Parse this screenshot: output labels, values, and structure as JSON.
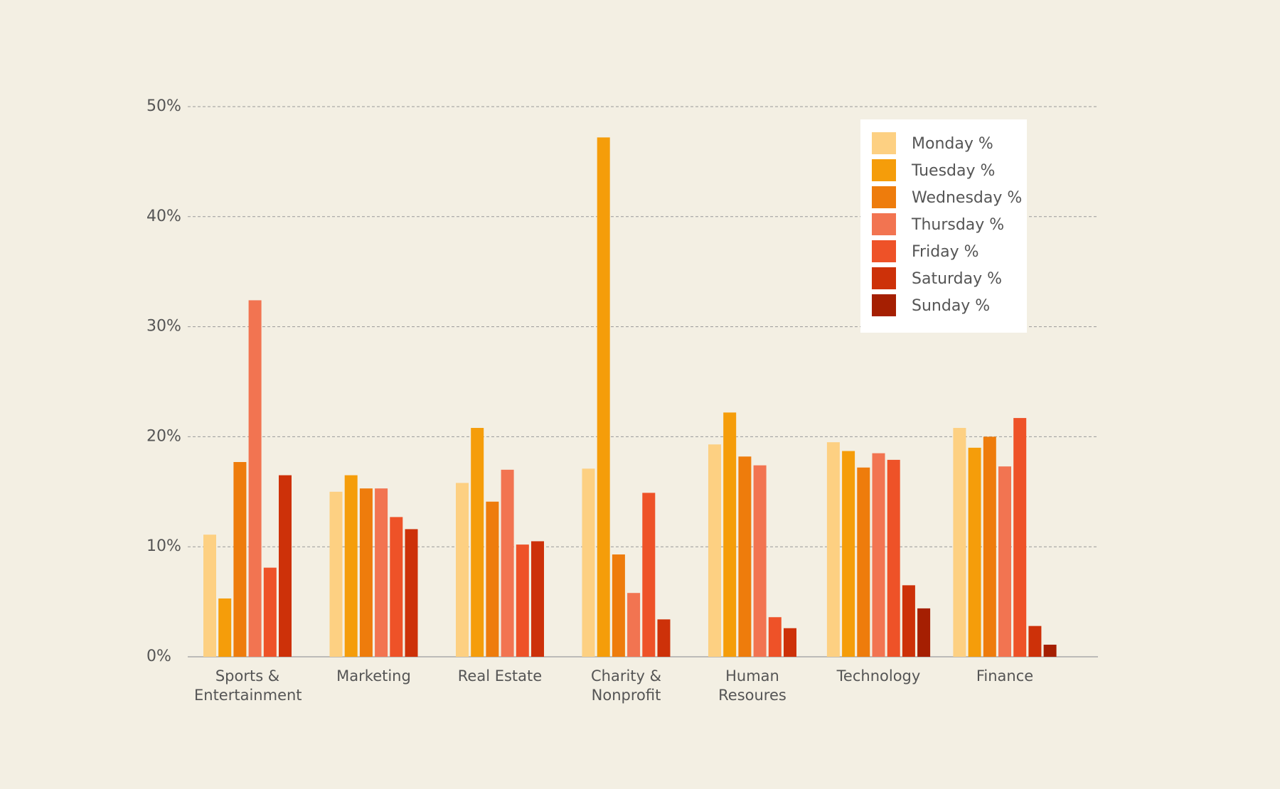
{
  "chart_data": {
    "type": "bar",
    "categories": [
      "Sports & Entertainment",
      "Marketing",
      "Real Estate",
      "Charity & Nonprofit",
      "Human Resoures",
      "Technology",
      "Finance"
    ],
    "series": [
      {
        "name": "Monday %",
        "color": "#fdd082",
        "values": [
          11.1,
          15.0,
          15.8,
          17.1,
          19.3,
          19.5,
          20.8
        ]
      },
      {
        "name": "Tuesday %",
        "color": "#f59d0a",
        "values": [
          5.3,
          16.5,
          20.8,
          47.2,
          22.2,
          18.7,
          19.0
        ]
      },
      {
        "name": "Wednesday %",
        "color": "#ee7c0c",
        "values": [
          17.7,
          15.3,
          14.1,
          9.3,
          18.2,
          17.2,
          20.0
        ]
      },
      {
        "name": "Thursday %",
        "color": "#f27451",
        "values": [
          32.4,
          15.3,
          17.0,
          5.8,
          17.4,
          18.5,
          17.3
        ]
      },
      {
        "name": "Friday %",
        "color": "#ee5228",
        "values": [
          8.1,
          12.7,
          10.2,
          14.9,
          3.6,
          17.9,
          21.7
        ]
      },
      {
        "name": "Saturday %",
        "color": "#cd3109",
        "values": [
          16.5,
          11.6,
          10.5,
          3.4,
          2.6,
          6.5,
          2.8
        ]
      },
      {
        "name": "Sunday %",
        "color": "#a51f02",
        "values": [
          null,
          null,
          null,
          null,
          null,
          4.4,
          1.1
        ]
      }
    ],
    "ylim": [
      0,
      50
    ],
    "yticks": [
      {
        "value": 0,
        "label": "0%"
      },
      {
        "value": 10,
        "label": "10%"
      },
      {
        "value": 20,
        "label": "20%"
      },
      {
        "value": 30,
        "label": "30%"
      },
      {
        "value": 40,
        "label": "40%"
      },
      {
        "value": 50,
        "label": "50%"
      }
    ],
    "grid": true,
    "legend": "upper right"
  }
}
